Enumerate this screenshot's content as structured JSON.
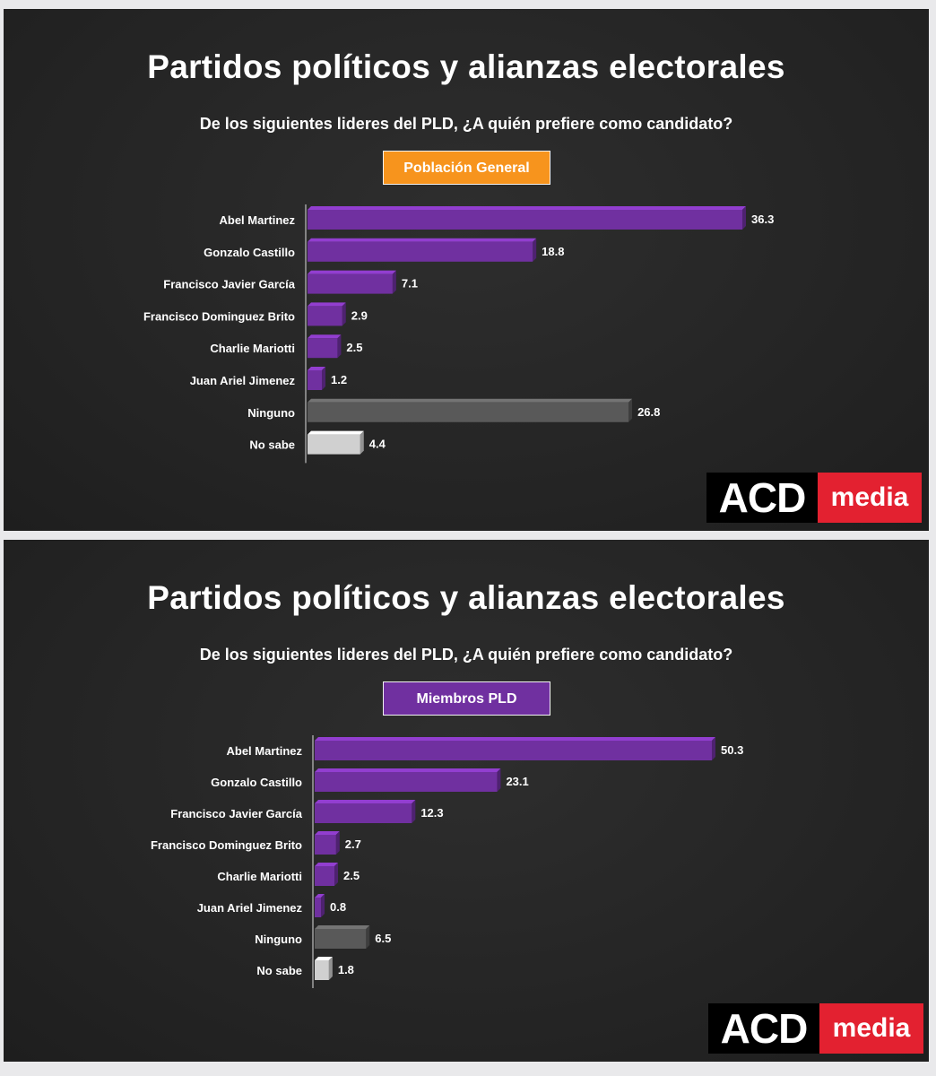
{
  "chart_data": [
    {
      "type": "bar",
      "orientation": "horizontal",
      "title": "Partidos políticos y alianzas electorales",
      "subtitle": "De los siguientes lideres del PLD, ¿A quién prefiere como candidato?",
      "badge": "Población General",
      "badge_color": "#f7941d",
      "categories": [
        "Abel Martinez",
        "Gonzalo Castillo",
        "Francisco Javier García",
        "Francisco Dominguez Brito",
        "Charlie Mariotti",
        "Juan Ariel Jimenez",
        "Ninguno",
        "No sabe"
      ],
      "values": [
        36.3,
        18.8,
        7.1,
        2.9,
        2.5,
        1.2,
        26.8,
        4.4
      ],
      "data_labels": [
        "36.3",
        "18.8",
        "7.1",
        "2.9",
        "2.5",
        "1.2",
        "26.8",
        "4.4"
      ],
      "bar_colors": [
        "#7030a0",
        "#7030a0",
        "#7030a0",
        "#7030a0",
        "#7030a0",
        "#7030a0",
        "#595959",
        "#d0d0d0"
      ],
      "xlim": [
        0,
        40
      ],
      "grid": false,
      "logo": {
        "acd": "ACD",
        "media": "media"
      }
    },
    {
      "type": "bar",
      "orientation": "horizontal",
      "title": "Partidos políticos y alianzas electorales",
      "subtitle": "De los siguientes lideres del PLD, ¿A quién prefiere como candidato?",
      "badge": "Miembros PLD",
      "badge_color": "#7030a0",
      "categories": [
        "Abel Martinez",
        "Gonzalo Castillo",
        "Francisco Javier García",
        "Francisco Dominguez Brito",
        "Charlie Mariotti",
        "Juan Ariel Jimenez",
        "Ninguno",
        "No sabe"
      ],
      "values": [
        50.3,
        23.1,
        12.3,
        2.7,
        2.5,
        0.8,
        6.5,
        1.8
      ],
      "data_labels": [
        "50.3",
        "23.1",
        "12.3",
        "2.7",
        "2.5",
        "0.8",
        "6.5",
        "1.8"
      ],
      "bar_colors": [
        "#7030a0",
        "#7030a0",
        "#7030a0",
        "#7030a0",
        "#7030a0",
        "#7030a0",
        "#595959",
        "#d0d0d0"
      ],
      "xlim": [
        0,
        55
      ],
      "grid": false,
      "logo": {
        "acd": "ACD",
        "media": "media"
      }
    }
  ]
}
